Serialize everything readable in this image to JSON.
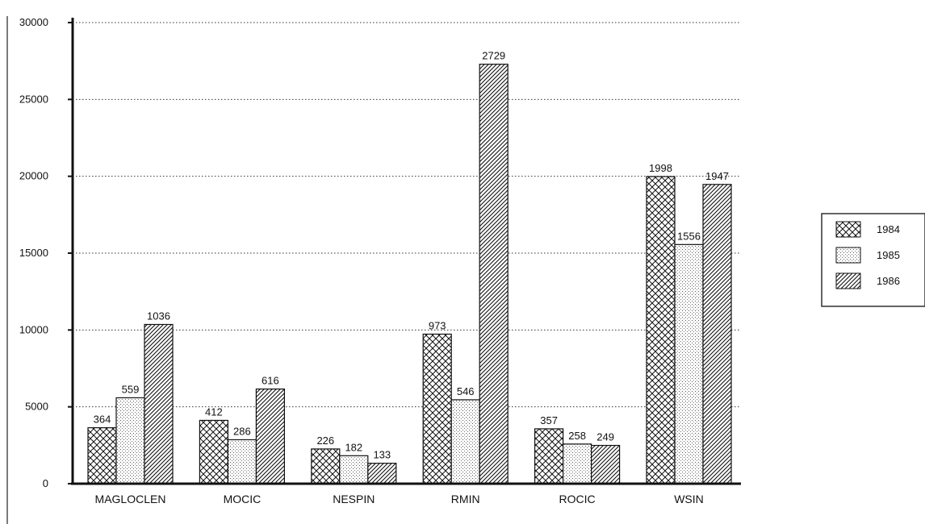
{
  "chart_data": {
    "type": "bar",
    "title": "",
    "xlabel": "",
    "ylabel": "",
    "ylim": [
      0,
      30000
    ],
    "yticks": [
      "0",
      "5000",
      "10000",
      "15000",
      "20000",
      "25000",
      "30000"
    ],
    "grid": "horizontal-dotted",
    "legend_position": "right",
    "categories": [
      "MAGLOCLEN",
      "MOCIC",
      "NESPIN",
      "RMIN",
      "ROCIC",
      "WSIN"
    ],
    "series": [
      {
        "name": "1984",
        "pattern": "crosshatch",
        "values": [
          3640,
          4120,
          2260,
          9730,
          3570,
          19980
        ],
        "labels": [
          "364",
          "412",
          "226",
          "973",
          "357",
          "1998"
        ]
      },
      {
        "name": "1985",
        "pattern": "dotted",
        "values": [
          5590,
          2860,
          1820,
          5460,
          2580,
          15560
        ],
        "labels": [
          "559",
          "286",
          "182",
          "546",
          "258",
          "1556"
        ]
      },
      {
        "name": "1986",
        "pattern": "diagonal",
        "values": [
          10360,
          6160,
          1330,
          27290,
          2490,
          19470
        ],
        "labels": [
          "1036",
          "616",
          "133",
          "2729",
          "249",
          "1947"
        ]
      }
    ]
  }
}
